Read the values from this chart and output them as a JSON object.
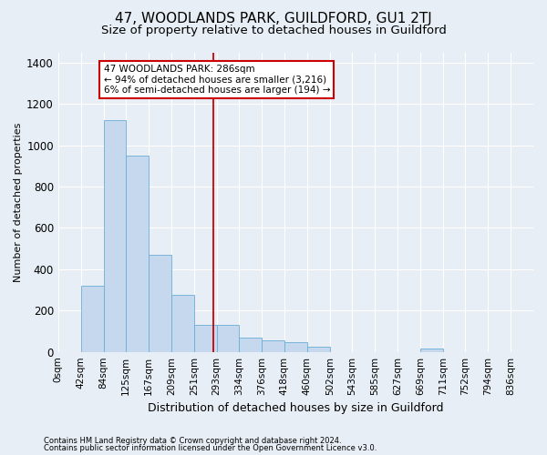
{
  "title": "47, WOODLANDS PARK, GUILDFORD, GU1 2TJ",
  "subtitle": "Size of property relative to detached houses in Guildford",
  "xlabel": "Distribution of detached houses by size in Guildford",
  "ylabel": "Number of detached properties",
  "footer1": "Contains HM Land Registry data © Crown copyright and database right 2024.",
  "footer2": "Contains public sector information licensed under the Open Government Licence v3.0.",
  "property_label": "47 WOODLANDS PARK: 286sqm",
  "annotation_line1": "← 94% of detached houses are smaller (3,216)",
  "annotation_line2": "6% of semi-detached houses are larger (194) →",
  "property_value": 286,
  "bar_color": "#c5d8ed",
  "bar_edge_color": "#6aaed6",
  "vline_color": "#cc0000",
  "annotation_box_color": "#ffffff",
  "annotation_box_edge": "#cc0000",
  "background_color": "#e8eef5",
  "grid_color": "#ffffff",
  "categories": [
    "0sqm",
    "42sqm",
    "84sqm",
    "125sqm",
    "167sqm",
    "209sqm",
    "251sqm",
    "293sqm",
    "334sqm",
    "376sqm",
    "418sqm",
    "460sqm",
    "502sqm",
    "543sqm",
    "585sqm",
    "627sqm",
    "669sqm",
    "711sqm",
    "752sqm",
    "794sqm",
    "836sqm"
  ],
  "bar_heights": [
    0,
    320,
    1120,
    950,
    470,
    275,
    130,
    130,
    70,
    55,
    45,
    25,
    0,
    0,
    0,
    0,
    15,
    0,
    0,
    0,
    0
  ],
  "bin_edges": [
    0,
    42,
    84,
    125,
    167,
    209,
    251,
    293,
    334,
    376,
    418,
    460,
    502,
    543,
    585,
    627,
    669,
    711,
    752,
    794,
    836
  ],
  "ylim": [
    0,
    1450
  ],
  "yticks": [
    0,
    200,
    400,
    600,
    800,
    1000,
    1200,
    1400
  ],
  "vline_x": 286,
  "title_fontsize": 11,
  "subtitle_fontsize": 9.5,
  "xlabel_fontsize": 9,
  "ylabel_fontsize": 8,
  "tick_fontsize": 7.5,
  "annotation_fontsize": 7.5,
  "footer_fontsize": 6
}
